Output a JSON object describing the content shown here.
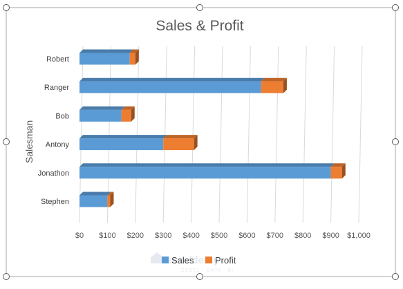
{
  "chart_data": {
    "type": "bar",
    "orientation": "horizontal",
    "stacked": true,
    "style_3d": true,
    "title": "Sales & Profit",
    "ylabel": "Salesman",
    "xlabel": "",
    "categories": [
      "Stephen",
      "Jonathon",
      "Antony",
      "Bob",
      "Ranger",
      "Robert"
    ],
    "series": [
      {
        "name": "Sales",
        "color": "#5B9BD5",
        "values": [
          100,
          900,
          300,
          150,
          650,
          180
        ]
      },
      {
        "name": "Profit",
        "color": "#ED7D31",
        "values": [
          10,
          40,
          110,
          35,
          80,
          20
        ]
      }
    ],
    "xlim": [
      0,
      1000
    ],
    "xticks": [
      0,
      100,
      200,
      300,
      400,
      500,
      600,
      700,
      800,
      900,
      1000
    ],
    "xtick_labels": [
      "$0",
      "$100",
      "$200",
      "$300",
      "$400",
      "$500",
      "$600",
      "$700",
      "$800",
      "$900",
      "$1,000"
    ],
    "grid": true,
    "legend_position": "bottom",
    "watermark": {
      "name": "exceldemy",
      "line1": "exceldemy",
      "line2": "EXCEL · DATA · BI"
    }
  }
}
